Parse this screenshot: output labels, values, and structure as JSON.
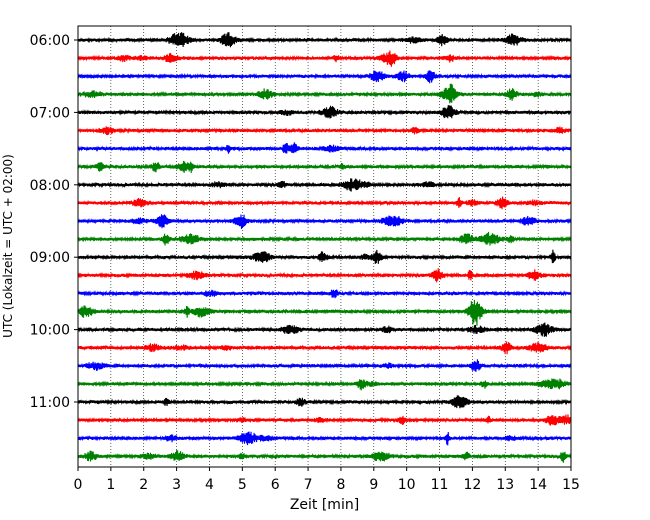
{
  "chart_data": {
    "type": "line",
    "title": "",
    "xlabel": "Zeit  [min]",
    "ylabel": "UTC (Lokalzeit = UTC + 02:00)",
    "xlim": [
      0,
      15
    ],
    "x_ticks": [
      "0",
      "1",
      "2",
      "3",
      "4",
      "5",
      "6",
      "7",
      "8",
      "9",
      "10",
      "11",
      "12",
      "13",
      "14",
      "15"
    ],
    "y_ticks": [
      "06:00",
      "07:00",
      "08:00",
      "09:00",
      "10:00",
      "11:00"
    ],
    "grid": "vertical dotted",
    "series_colors": [
      "#000000",
      "#ff0000",
      "#0000ff",
      "#008000"
    ],
    "traces": [
      {
        "start": "06:00",
        "color": "#000000"
      },
      {
        "start": "06:15",
        "color": "#ff0000"
      },
      {
        "start": "06:30",
        "color": "#0000ff"
      },
      {
        "start": "06:45",
        "color": "#008000"
      },
      {
        "start": "07:00",
        "color": "#000000"
      },
      {
        "start": "07:15",
        "color": "#ff0000"
      },
      {
        "start": "07:30",
        "color": "#0000ff"
      },
      {
        "start": "07:45",
        "color": "#008000"
      },
      {
        "start": "08:00",
        "color": "#000000"
      },
      {
        "start": "08:15",
        "color": "#ff0000"
      },
      {
        "start": "08:30",
        "color": "#0000ff"
      },
      {
        "start": "08:45",
        "color": "#008000"
      },
      {
        "start": "09:00",
        "color": "#000000"
      },
      {
        "start": "09:15",
        "color": "#ff0000"
      },
      {
        "start": "09:30",
        "color": "#0000ff"
      },
      {
        "start": "09:45",
        "color": "#008000"
      },
      {
        "start": "10:00",
        "color": "#000000"
      },
      {
        "start": "10:15",
        "color": "#ff0000"
      },
      {
        "start": "10:30",
        "color": "#0000ff"
      },
      {
        "start": "10:45",
        "color": "#008000"
      },
      {
        "start": "11:00",
        "color": "#000000"
      },
      {
        "start": "11:15",
        "color": "#ff0000"
      },
      {
        "start": "11:30",
        "color": "#0000ff"
      },
      {
        "start": "11:45",
        "color": "#008000"
      }
    ]
  }
}
